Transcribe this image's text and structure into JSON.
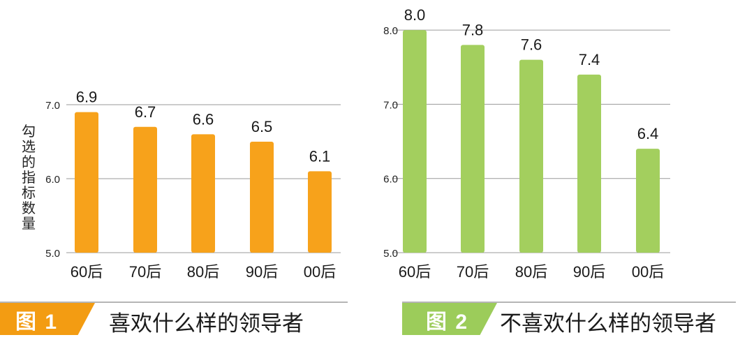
{
  "charts": [
    {
      "caption_badge": "图 1",
      "caption": "喜欢什么样的领导者",
      "accent": "#f7a21b",
      "badge_color": "#f39c12",
      "chart_data": {
        "type": "bar",
        "categories": [
          "60后",
          "70后",
          "80后",
          "90后",
          "00后"
        ],
        "values": [
          6.9,
          6.7,
          6.6,
          6.5,
          6.1
        ],
        "value_labels": [
          "6.9",
          "6.7",
          "6.6",
          "6.5",
          "6.1"
        ],
        "ylabel": "勾选的指标数量",
        "ylim": [
          5.0,
          7.0
        ],
        "yticks": [
          "5.0",
          "6.0",
          "7.0"
        ],
        "grid": true,
        "bar_color": "#f7a21b"
      }
    },
    {
      "caption_badge": "图 2",
      "caption": "不喜欢什么样的领导者",
      "accent": "#a3cf5e",
      "badge_color": "#9ccc5a",
      "chart_data": {
        "type": "bar",
        "categories": [
          "60后",
          "70后",
          "80后",
          "90后",
          "00后"
        ],
        "values": [
          8.0,
          7.8,
          7.6,
          7.4,
          6.4
        ],
        "value_labels": [
          "8.0",
          "7.8",
          "7.6",
          "7.4",
          "6.4"
        ],
        "ylabel": "",
        "ylim": [
          5.0,
          8.0
        ],
        "yticks": [
          "5.0",
          "6.0",
          "7.0",
          "8.0"
        ],
        "grid": true,
        "bar_color": "#a3cf5e"
      }
    }
  ]
}
